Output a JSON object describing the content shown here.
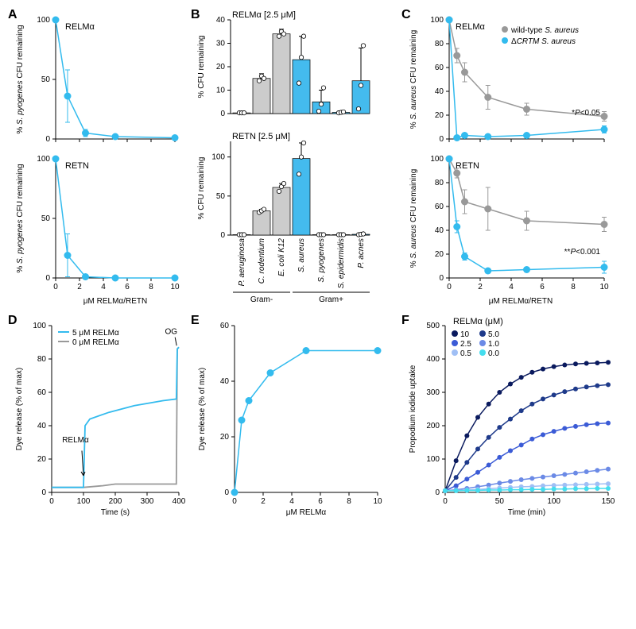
{
  "colors": {
    "cyan": "#33bbee",
    "gray": "#999999",
    "lightgray": "#cccccc",
    "darkblue1": "#0a1a5e",
    "darkblue2": "#1e3a8a",
    "blue3": "#3b5bd6",
    "blue4": "#6b8ae6",
    "blue5": "#a0bff5",
    "blue6": "#44ddee",
    "bar_gray": "#cccccc",
    "bar_cyan": "#44bbee"
  },
  "panelA": {
    "label": "A",
    "top": {
      "title": "RELMα",
      "ylabel_lines": [
        "% ",
        "S. pyogenes",
        " CFU remaining"
      ],
      "x": [
        0,
        1,
        2.5,
        5,
        10
      ],
      "y": [
        100,
        36,
        5,
        2,
        1
      ],
      "err": [
        0,
        22,
        3,
        1,
        0
      ],
      "ylim": [
        0,
        100
      ],
      "yticks": [
        0,
        50,
        100
      ]
    },
    "bottom": {
      "title": "RETN",
      "x": [
        0,
        1,
        2.5,
        5,
        10
      ],
      "y": [
        100,
        19,
        1,
        0,
        0
      ],
      "err": [
        0,
        18,
        0.5,
        0,
        0
      ],
      "ylim": [
        0,
        100
      ],
      "yticks": [
        0,
        50,
        100
      ]
    },
    "xlabel": "μM RELMα/RETN",
    "xticks": [
      0,
      2,
      4,
      6,
      8,
      10
    ]
  },
  "panelB": {
    "label": "B",
    "top": {
      "title": "RELMα [2.5 μM]",
      "ylabel": "% CFU remaining",
      "values": [
        0.3,
        15,
        34,
        23,
        5,
        0.5,
        14
      ],
      "err": [
        0.2,
        2,
        2,
        10,
        5,
        0.2,
        14
      ],
      "points": [
        [
          0.3,
          0.3,
          0.3
        ],
        [
          14,
          16,
          15
        ],
        [
          33,
          35,
          34
        ],
        [
          13,
          24,
          33
        ],
        [
          1,
          4,
          11
        ],
        [
          0.3,
          0.5,
          0.7
        ],
        [
          2,
          12,
          29
        ]
      ],
      "ylim": [
        0,
        40
      ],
      "yticks": [
        0,
        10,
        20,
        30,
        40
      ]
    },
    "bottom": {
      "title": "RETN [2.5 μM]",
      "ylabel": "% CFU remaining",
      "values": [
        0.5,
        31,
        61,
        98,
        0.5,
        0.5,
        1
      ],
      "err": [
        0.3,
        2,
        5,
        20,
        0.3,
        0.3,
        0.5
      ],
      "points": [
        [
          0.5,
          0.5,
          0.5
        ],
        [
          29,
          31,
          33
        ],
        [
          56,
          62,
          66
        ],
        [
          78,
          100,
          118
        ],
        [
          0.5,
          0.5,
          0.5
        ],
        [
          0.5,
          0.5,
          0.5
        ],
        [
          0.5,
          1,
          1.5
        ]
      ],
      "ylim": [
        0,
        120
      ],
      "yticks": [
        0,
        50,
        100
      ]
    },
    "categories": [
      "P. aeruginosa",
      "C. rodentium",
      "E. coli K12",
      "S. aureus",
      "S. pyogenes",
      "S. epidermidis",
      "P. acnes"
    ],
    "bar_fills": [
      "bar_gray",
      "bar_gray",
      "bar_gray",
      "bar_cyan",
      "bar_cyan",
      "bar_cyan",
      "bar_cyan"
    ],
    "groupLabels": [
      "Gram-",
      "Gram+"
    ]
  },
  "panelC": {
    "label": "C",
    "legend": [
      "wild-type S. aureus",
      "ΔCRTM  S. aureus"
    ],
    "top": {
      "title": "RELMα",
      "ylabel_lines": [
        "% ",
        "S. aureus",
        " CFU remaining"
      ],
      "x": [
        0,
        0.5,
        1,
        2.5,
        5,
        10
      ],
      "wt": [
        100,
        70,
        56,
        35,
        25,
        19
      ],
      "wt_err": [
        0,
        6,
        8,
        10,
        5,
        4
      ],
      "mut": [
        100,
        1,
        3,
        2,
        3,
        8
      ],
      "mut_err": [
        0,
        0.5,
        1,
        1,
        1,
        3
      ],
      "p_text": "*P<0.05",
      "ylim": [
        0,
        100
      ],
      "yticks": [
        0,
        20,
        40,
        60,
        80,
        100
      ]
    },
    "bottom": {
      "title": "RETN",
      "x": [
        0,
        0.5,
        1,
        2.5,
        5,
        10
      ],
      "wt": [
        100,
        88,
        64,
        58,
        48,
        45
      ],
      "wt_err": [
        0,
        4,
        10,
        18,
        8,
        6
      ],
      "mut": [
        100,
        43,
        18,
        6,
        7,
        9
      ],
      "mut_err": [
        0,
        5,
        3,
        2,
        2,
        5
      ],
      "p_text": "**P<0.001",
      "ylim": [
        0,
        100
      ],
      "yticks": [
        0,
        20,
        40,
        60,
        80,
        100
      ]
    },
    "xlabel": "μM RELMα/RETN",
    "xticks": [
      0,
      2,
      4,
      6,
      8,
      10
    ]
  },
  "panelD": {
    "label": "D",
    "ylabel": "Dye release (% of max)",
    "xlabel": "Time (s)",
    "legend": [
      "5 μM RELMα",
      "0 μM RELMα"
    ],
    "annot1": "RELMα",
    "annot2": "OG",
    "xlim": [
      0,
      400
    ],
    "xticks": [
      0,
      100,
      200,
      300,
      400
    ],
    "ylim": [
      0,
      100
    ],
    "yticks": [
      0,
      20,
      40,
      60,
      80,
      100
    ],
    "blue_trace": [
      [
        0,
        3
      ],
      [
        100,
        3
      ],
      [
        105,
        40
      ],
      [
        120,
        44
      ],
      [
        180,
        48
      ],
      [
        260,
        52
      ],
      [
        350,
        55
      ],
      [
        392,
        56
      ],
      [
        395,
        86
      ],
      [
        400,
        87
      ]
    ],
    "gray_trace": [
      [
        0,
        3
      ],
      [
        100,
        3
      ],
      [
        160,
        4
      ],
      [
        200,
        5
      ],
      [
        300,
        5
      ],
      [
        392,
        5
      ],
      [
        395,
        86
      ],
      [
        400,
        87
      ]
    ]
  },
  "panelE": {
    "label": "E",
    "ylabel": "Dye release (% of max)",
    "xlabel": "μM RELMα",
    "x": [
      0,
      0.5,
      1,
      2.5,
      5,
      10
    ],
    "y": [
      0,
      26,
      33,
      43,
      51,
      51
    ],
    "ylim": [
      0,
      60
    ],
    "yticks": [
      0,
      20,
      40,
      60
    ],
    "xticks": [
      0,
      2,
      4,
      6,
      8,
      10
    ]
  },
  "panelF": {
    "label": "F",
    "title": "RELMα (μM)",
    "ylabel": "Propodium iodide uptake",
    "xlabel": "Time (min)",
    "legend": [
      "10",
      "5.0",
      "2.5",
      "1.0",
      "0.5",
      "0.0"
    ],
    "legend_colors": [
      "darkblue1",
      "darkblue2",
      "blue3",
      "blue4",
      "blue5",
      "blue6"
    ],
    "xlim": [
      0,
      150
    ],
    "xticks": [
      0,
      50,
      100,
      150
    ],
    "ylim": [
      0,
      500
    ],
    "yticks": [
      0,
      100,
      200,
      300,
      400,
      500
    ],
    "time": [
      0,
      10,
      20,
      30,
      40,
      50,
      60,
      70,
      80,
      90,
      100,
      110,
      120,
      130,
      140,
      150
    ],
    "series": {
      "10": [
        5,
        95,
        170,
        225,
        265,
        300,
        325,
        345,
        360,
        370,
        377,
        382,
        385,
        387,
        388,
        390
      ],
      "5.0": [
        5,
        45,
        90,
        130,
        165,
        195,
        220,
        245,
        265,
        280,
        292,
        302,
        310,
        316,
        320,
        323
      ],
      "2.5": [
        5,
        20,
        40,
        60,
        82,
        105,
        125,
        142,
        160,
        173,
        183,
        192,
        198,
        203,
        206,
        208
      ],
      "1.0": [
        5,
        8,
        12,
        17,
        22,
        28,
        33,
        38,
        42,
        46,
        50,
        54,
        58,
        62,
        66,
        70
      ],
      "0.5": [
        5,
        6,
        7,
        9,
        11,
        13,
        15,
        17,
        18,
        20,
        21,
        22,
        23,
        24,
        25,
        26
      ],
      "0.0": [
        5,
        5,
        6,
        6,
        7,
        7,
        8,
        8,
        9,
        9,
        10,
        10,
        11,
        11,
        12,
        12
      ]
    }
  }
}
